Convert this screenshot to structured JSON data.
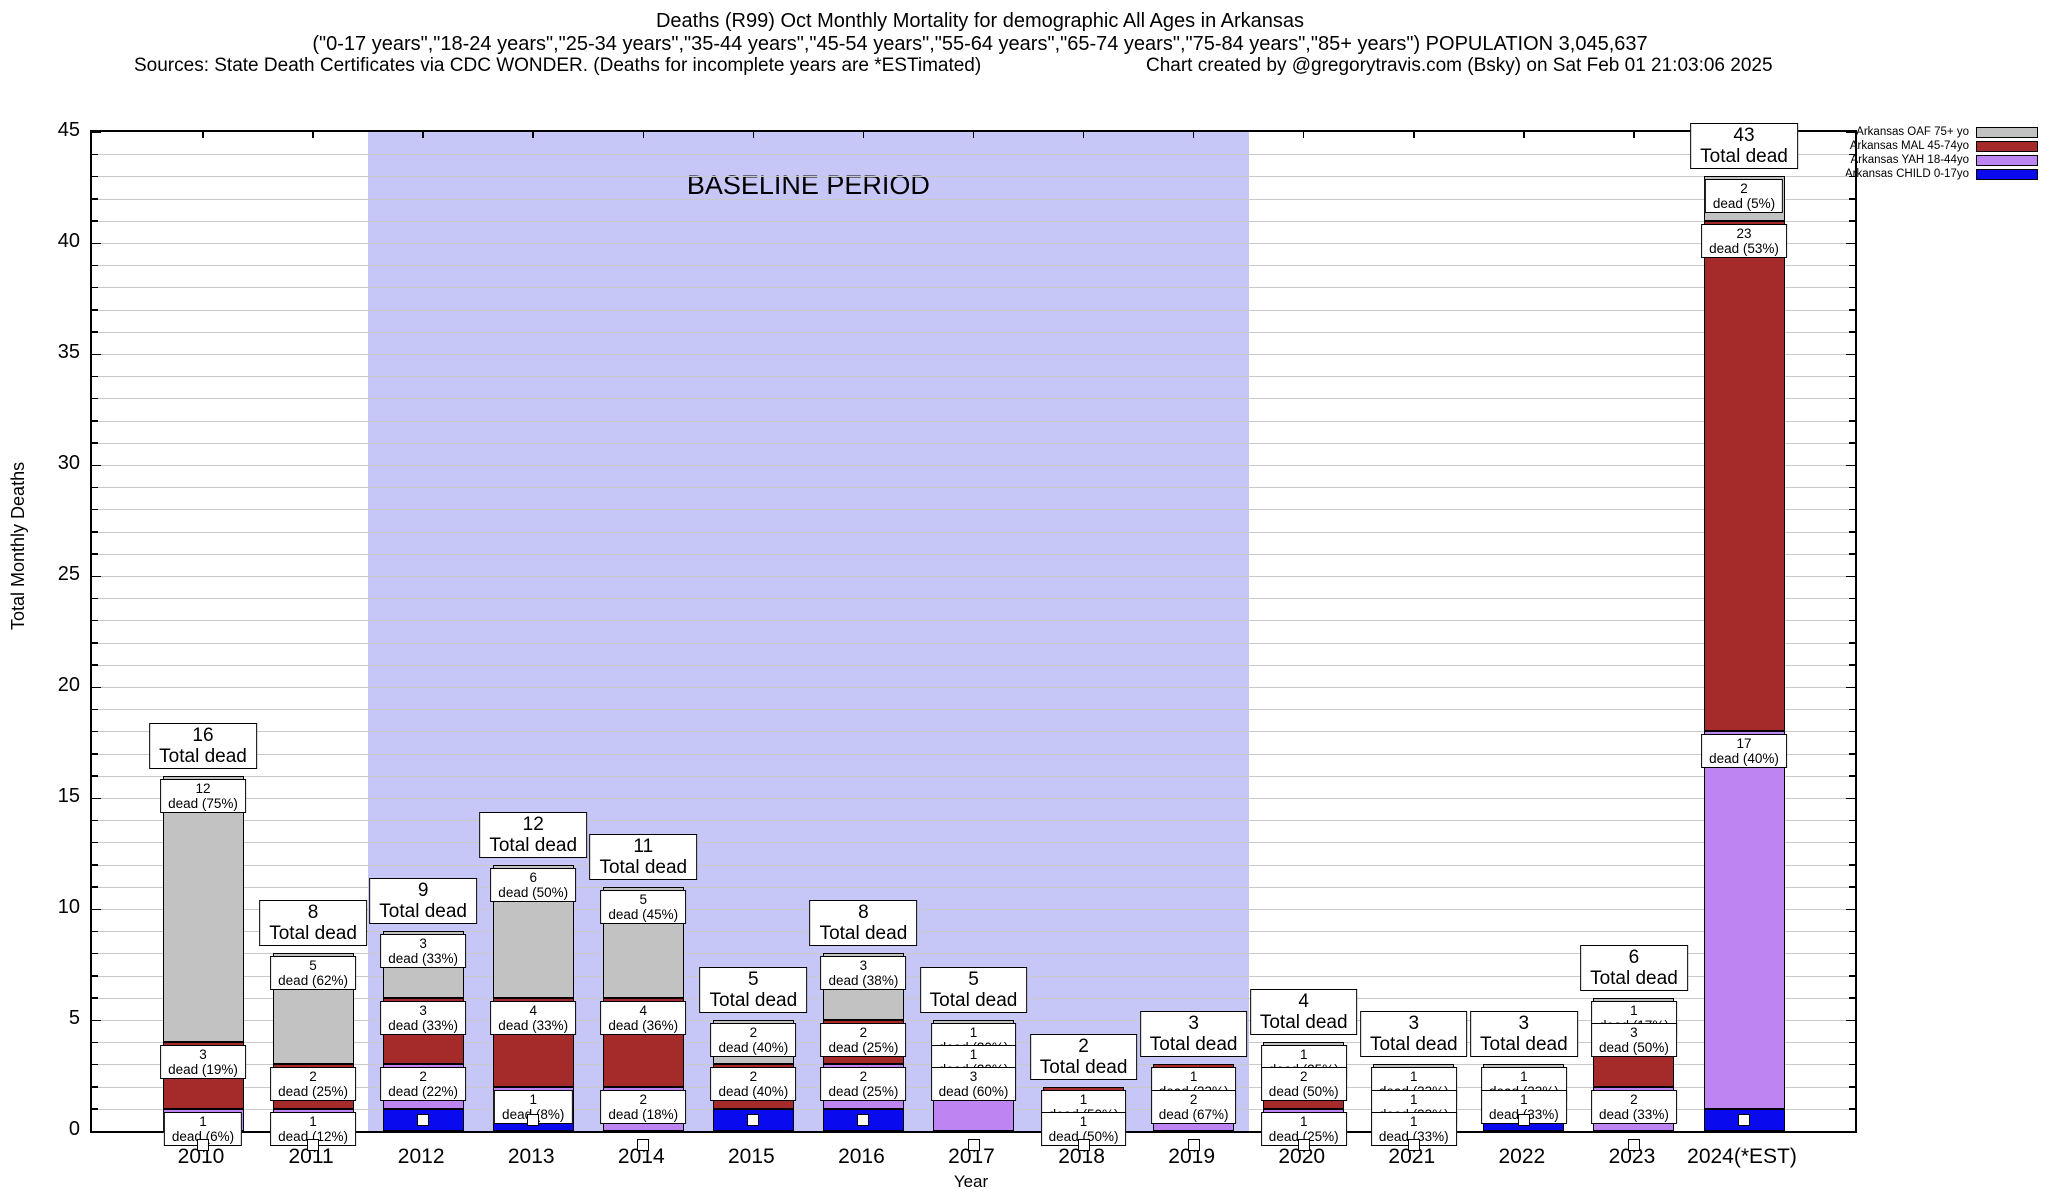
{
  "header": {
    "line1": "Deaths (R99) Oct Monthly Mortality for demographic All Ages in Arkansas",
    "line2": "(\"0-17 years\",\"18-24 years\",\"25-34 years\",\"35-44 years\",\"45-54 years\",\"55-64 years\",\"65-74 years\",\"75-84 years\",\"85+ years\") POPULATION 3,045,637",
    "sources": "Sources: State Death Certificates via CDC WONDER. (Deaths for incomplete years are *ESTimated)",
    "credit": "Chart created by @gregorytravis.com (Bsky) on Sat Feb 01 21:03:06 2025"
  },
  "legend": {
    "items": [
      {
        "label": "Arkansas OAF 75+ yo",
        "color": "#c2c2c2"
      },
      {
        "label": "Arkansas MAL 45-74yo",
        "color": "#a52a2a"
      },
      {
        "label": "Arkansas YAH 18-44yo",
        "color": "#bd84f2"
      },
      {
        "label": "Arkansas CHILD 0-17yo",
        "color": "#0a0aee"
      }
    ]
  },
  "chart_data": {
    "type": "bar",
    "stacked": true,
    "title": "Deaths (R99) Oct Monthly Mortality for demographic All Ages in Arkansas",
    "xlabel": "Year",
    "ylabel": "Total Monthly Deaths",
    "ylim": [
      0,
      45
    ],
    "ytick_step": 5,
    "grid": "minor horizontal every 1 unit",
    "legend_position": "top-right outside",
    "total_label_suffix": "Total dead",
    "baseline_band": {
      "label": "BASELINE PERIOD",
      "from_slot": 1.5,
      "to_slot": 9.5,
      "color": "#c7c7f7"
    },
    "series_order_bottom_to_top": [
      "child",
      "yah",
      "mal",
      "oaf"
    ],
    "series_meta": {
      "child": {
        "name": "Arkansas CHILD 0-17yo",
        "color": "#0a0aee"
      },
      "yah": {
        "name": "Arkansas YAH 18-44yo",
        "color": "#bd84f2"
      },
      "mal": {
        "name": "Arkansas MAL 45-74yo",
        "color": "#a52a2a"
      },
      "oaf": {
        "name": "Arkansas OAF 75+ yo",
        "color": "#c2c2c2"
      }
    },
    "bars": [
      {
        "year": "2010",
        "total": 16,
        "values": {
          "child": 0,
          "yah": 1,
          "mal": 3,
          "oaf": 12
        },
        "labels": {
          "yah": [
            "1",
            "dead (6%)"
          ],
          "mal": [
            "3",
            "dead (19%)"
          ],
          "oaf": [
            "12",
            "dead (75%)"
          ]
        }
      },
      {
        "year": "2011",
        "total": 8,
        "values": {
          "child": 0,
          "yah": 1,
          "mal": 2,
          "oaf": 5
        },
        "labels": {
          "yah": [
            "1",
            "dead (12%)"
          ],
          "mal": [
            "2",
            "dead (25%)"
          ],
          "oaf": [
            "5",
            "dead (62%)"
          ]
        }
      },
      {
        "year": "2012",
        "total": 9,
        "values": {
          "child": 1,
          "yah": 2,
          "mal": 3,
          "oaf": 3
        },
        "labels": {
          "yah": [
            "2",
            "dead (22%)"
          ],
          "mal": [
            "3",
            "dead (33%)"
          ],
          "oaf": [
            "3",
            "dead (33%)"
          ]
        }
      },
      {
        "year": "2013",
        "total": 12,
        "values": {
          "child": 1,
          "yah": 1,
          "mal": 4,
          "oaf": 6
        },
        "labels": {
          "yah": [
            "1",
            "dead (8%)"
          ],
          "mal": [
            "4",
            "dead (33%)"
          ],
          "oaf": [
            "6",
            "dead (50%)"
          ]
        }
      },
      {
        "year": "2014",
        "total": 11,
        "values": {
          "child": 0,
          "yah": 2,
          "mal": 4,
          "oaf": 5
        },
        "labels": {
          "yah": [
            "2",
            "dead (18%)"
          ],
          "mal": [
            "4",
            "dead (36%)"
          ],
          "oaf": [
            "5",
            "dead (45%)"
          ]
        }
      },
      {
        "year": "2015",
        "total": 5,
        "values": {
          "child": 1,
          "yah": 0,
          "mal": 2,
          "oaf": 2
        },
        "labels": {
          "mal": [
            "2",
            "dead (40%)"
          ],
          "oaf": [
            "2",
            "dead (40%)"
          ]
        }
      },
      {
        "year": "2016",
        "total": 8,
        "values": {
          "child": 1,
          "yah": 2,
          "mal": 2,
          "oaf": 3
        },
        "labels": {
          "yah": [
            "2",
            "dead (25%)"
          ],
          "mal": [
            "2",
            "dead (25%)"
          ],
          "oaf": [
            "3",
            "dead (38%)"
          ]
        }
      },
      {
        "year": "2017",
        "total": 5,
        "values": {
          "child": 0,
          "yah": 3,
          "mal": 1,
          "oaf": 1
        },
        "labels": {
          "yah": [
            "3",
            "dead (60%)"
          ],
          "mal": [
            "1",
            "dead (20%)"
          ],
          "oaf": [
            "1",
            "dead (20%)"
          ]
        }
      },
      {
        "year": "2018",
        "total": 2,
        "values": {
          "child": 0,
          "yah": 1,
          "mal": 1,
          "oaf": 0
        },
        "labels": {
          "yah": [
            "1",
            "dead (50%)"
          ],
          "mal": [
            "1",
            "dead (50%)"
          ]
        }
      },
      {
        "year": "2019",
        "total": 3,
        "values": {
          "child": 0,
          "yah": 2,
          "mal": 1,
          "oaf": 0
        },
        "labels": {
          "yah": [
            "2",
            "dead (67%)"
          ],
          "mal": [
            "1",
            "dead (33%)"
          ]
        }
      },
      {
        "year": "2020",
        "total": 4,
        "values": {
          "child": 0,
          "yah": 1,
          "mal": 2,
          "oaf": 1
        },
        "labels": {
          "yah": [
            "1",
            "dead (25%)"
          ],
          "mal": [
            "2",
            "dead (50%)"
          ],
          "oaf": [
            "1",
            "dead (25%)"
          ]
        }
      },
      {
        "year": "2021",
        "total": 3,
        "values": {
          "child": 0,
          "yah": 1,
          "mal": 1,
          "oaf": 1
        },
        "labels": {
          "yah": [
            "1",
            "dead (33%)"
          ],
          "mal": [
            "1",
            "dead (33%)"
          ],
          "oaf": [
            "1",
            "dead (33%)"
          ]
        }
      },
      {
        "year": "2022",
        "total": 3,
        "values": {
          "child": 1,
          "yah": 0,
          "mal": 1,
          "oaf": 1
        },
        "labels": {
          "mal": [
            "1",
            "dead (33%)"
          ],
          "oaf": [
            "1",
            "dead (33%)"
          ]
        }
      },
      {
        "year": "2023",
        "total": 6,
        "values": {
          "child": 0,
          "yah": 2,
          "mal": 3,
          "oaf": 1
        },
        "labels": {
          "yah": [
            "2",
            "dead (33%)"
          ],
          "mal": [
            "3",
            "dead (50%)"
          ],
          "oaf": [
            "1",
            "dead (17%)"
          ]
        }
      },
      {
        "year": "2024(*EST)",
        "total": 43,
        "values": {
          "child": 1,
          "yah": 17,
          "mal": 23,
          "oaf": 2
        },
        "labels": {
          "yah": [
            "17",
            "dead (40%)"
          ],
          "mal": [
            "23",
            "dead (53%)"
          ],
          "oaf": [
            "2",
            "dead (5%)"
          ]
        }
      }
    ]
  }
}
